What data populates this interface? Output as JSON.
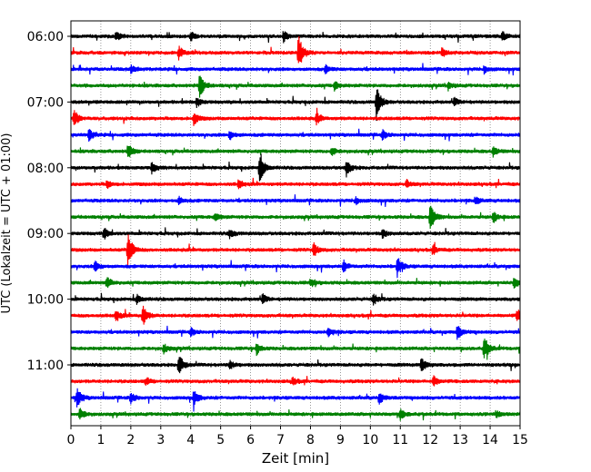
{
  "chart_data": {
    "type": "line",
    "title": "",
    "xlabel": "Zeit  [min]",
    "ylabel": "UTC (Lokalzeit = UTC + 01:00)",
    "xlim": [
      0,
      15
    ],
    "x_ticks": [
      0,
      1,
      2,
      3,
      4,
      5,
      6,
      7,
      8,
      9,
      10,
      11,
      12,
      13,
      14,
      15
    ],
    "x_tick_labels": [
      "0",
      "1",
      "2",
      "3",
      "4",
      "5",
      "6",
      "7",
      "8",
      "9",
      "10",
      "11",
      "12",
      "13",
      "14",
      "15"
    ],
    "y_tick_labels": [
      "06:00",
      "07:00",
      "08:00",
      "09:00",
      "10:00",
      "11:00"
    ],
    "grid": "vertical dotted",
    "row_interval_min": 15,
    "colors": [
      "#000000",
      "#ff0000",
      "#0000ff",
      "#008000"
    ],
    "traces": [
      {
        "start": "06:00",
        "events": [
          [
            1.5,
            0.25
          ],
          [
            4.0,
            0.25
          ],
          [
            7.1,
            0.3
          ],
          [
            14.4,
            0.25
          ]
        ]
      },
      {
        "start": "06:15",
        "events": [
          [
            3.6,
            0.35
          ],
          [
            7.6,
            1.0
          ],
          [
            12.4,
            0.2
          ]
        ]
      },
      {
        "start": "06:30",
        "events": [
          [
            2.0,
            0.2
          ],
          [
            8.5,
            0.2
          ],
          [
            13.8,
            0.2
          ]
        ]
      },
      {
        "start": "06:45",
        "events": [
          [
            4.3,
            0.7
          ],
          [
            8.8,
            0.25
          ],
          [
            12.6,
            0.2
          ]
        ]
      },
      {
        "start": "07:00",
        "events": [
          [
            4.2,
            0.25
          ],
          [
            10.2,
            0.95
          ],
          [
            12.8,
            0.2
          ]
        ]
      },
      {
        "start": "07:15",
        "events": [
          [
            0.1,
            0.5
          ],
          [
            4.1,
            0.35
          ],
          [
            8.2,
            0.3
          ]
        ]
      },
      {
        "start": "07:30",
        "events": [
          [
            0.6,
            0.3
          ],
          [
            5.3,
            0.25
          ],
          [
            10.4,
            0.25
          ]
        ]
      },
      {
        "start": "07:45",
        "events": [
          [
            1.9,
            0.4
          ],
          [
            8.7,
            0.25
          ],
          [
            14.1,
            0.25
          ]
        ]
      },
      {
        "start": "08:00",
        "events": [
          [
            2.7,
            0.3
          ],
          [
            6.3,
            0.9
          ],
          [
            9.2,
            0.45
          ]
        ]
      },
      {
        "start": "08:15",
        "events": [
          [
            1.2,
            0.2
          ],
          [
            5.6,
            0.25
          ],
          [
            11.2,
            0.2
          ]
        ]
      },
      {
        "start": "08:30",
        "events": [
          [
            3.6,
            0.2
          ],
          [
            9.5,
            0.2
          ],
          [
            13.5,
            0.2
          ]
        ]
      },
      {
        "start": "08:45",
        "events": [
          [
            4.8,
            0.25
          ],
          [
            12.0,
            0.8
          ],
          [
            14.1,
            0.3
          ]
        ]
      },
      {
        "start": "09:00",
        "events": [
          [
            1.1,
            0.35
          ],
          [
            5.3,
            0.25
          ],
          [
            10.4,
            0.25
          ]
        ]
      },
      {
        "start": "09:15",
        "events": [
          [
            1.9,
            1.0
          ],
          [
            8.1,
            0.4
          ],
          [
            12.1,
            0.25
          ]
        ]
      },
      {
        "start": "09:30",
        "events": [
          [
            0.8,
            0.3
          ],
          [
            9.1,
            0.3
          ],
          [
            10.9,
            0.55
          ]
        ]
      },
      {
        "start": "09:45",
        "events": [
          [
            1.2,
            0.3
          ],
          [
            8.0,
            0.25
          ],
          [
            14.8,
            0.3
          ]
        ]
      },
      {
        "start": "10:00",
        "events": [
          [
            2.2,
            0.25
          ],
          [
            6.4,
            0.25
          ],
          [
            10.1,
            0.3
          ]
        ]
      },
      {
        "start": "10:15",
        "events": [
          [
            1.5,
            0.35
          ],
          [
            2.4,
            0.55
          ],
          [
            14.9,
            0.35
          ]
        ]
      },
      {
        "start": "10:30",
        "events": [
          [
            4.0,
            0.2
          ],
          [
            8.6,
            0.25
          ],
          [
            12.9,
            0.4
          ]
        ]
      },
      {
        "start": "10:45",
        "events": [
          [
            3.1,
            0.25
          ],
          [
            6.2,
            0.3
          ],
          [
            13.8,
            0.7
          ]
        ]
      },
      {
        "start": "11:00",
        "events": [
          [
            3.6,
            0.6
          ],
          [
            5.3,
            0.25
          ],
          [
            11.7,
            0.45
          ]
        ]
      },
      {
        "start": "11:15",
        "events": [
          [
            2.5,
            0.2
          ],
          [
            7.4,
            0.2
          ],
          [
            12.1,
            0.3
          ]
        ]
      },
      {
        "start": "11:30",
        "events": [
          [
            0.2,
            0.55
          ],
          [
            2.0,
            0.3
          ],
          [
            4.1,
            0.45
          ],
          [
            10.3,
            0.3
          ]
        ]
      },
      {
        "start": "11:45",
        "events": [
          [
            0.3,
            0.35
          ],
          [
            11.0,
            0.35
          ],
          [
            14.2,
            0.2
          ]
        ]
      }
    ]
  }
}
